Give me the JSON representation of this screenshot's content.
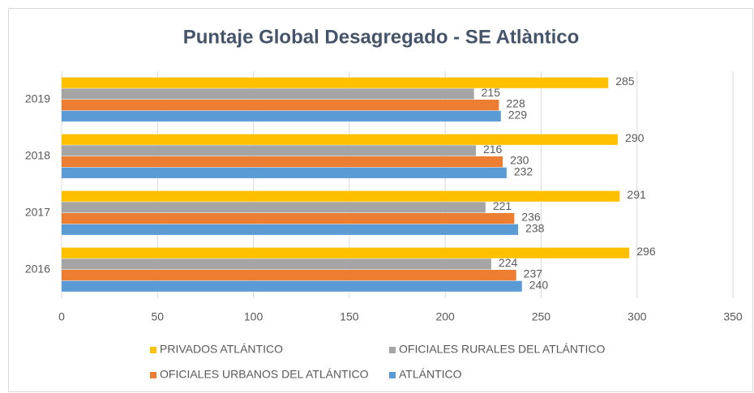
{
  "chart_data": {
    "type": "barh",
    "title": "Puntaje  Global Desagregado - SE Atlàntico",
    "categories": [
      "2019",
      "2018",
      "2017",
      "2016"
    ],
    "series": [
      {
        "name": "PRIVADOS ATLÁNTICO",
        "color": "#ffc000",
        "values": [
          285,
          290,
          291,
          296
        ]
      },
      {
        "name": "OFICIALES RURALES DEL ATLÁNTICO",
        "color": "#a5a5a5",
        "values": [
          215,
          216,
          221,
          224
        ]
      },
      {
        "name": "OFICIALES URBANOS DEL ATLÁNTICO",
        "color": "#ed7d31",
        "values": [
          228,
          230,
          236,
          237
        ]
      },
      {
        "name": "ATLÁNTICO",
        "color": "#5b9bd5",
        "values": [
          229,
          232,
          238,
          240
        ]
      }
    ],
    "xlim": [
      0,
      350
    ],
    "xticks": [
      0,
      50,
      100,
      150,
      200,
      250,
      300,
      350
    ],
    "grid": true,
    "legend": "bottom"
  }
}
